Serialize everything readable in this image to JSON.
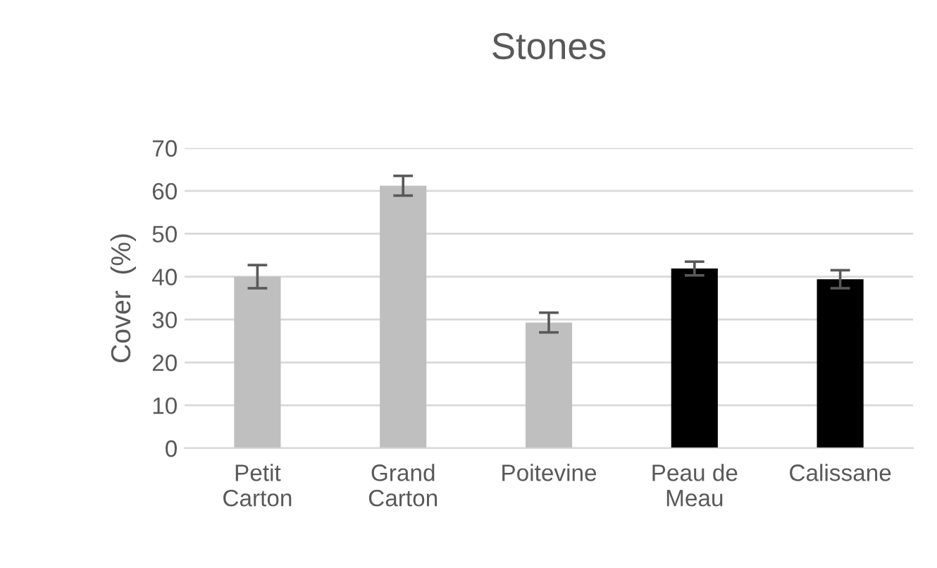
{
  "chart_data": {
    "type": "bar",
    "title": "Stones",
    "ylabel": "Cover  (%)",
    "categories": [
      "Petit\nCarton",
      "Grand\nCarton",
      "Poitevine",
      "Peau de\nMeau",
      "Calissane"
    ],
    "values": [
      40.0,
      61.2,
      29.3,
      41.9,
      39.4
    ],
    "errors": [
      2.7,
      2.3,
      2.3,
      1.6,
      2.1
    ],
    "colors": [
      "#bfbfbf",
      "#bfbfbf",
      "#bfbfbf",
      "#000000",
      "#000000"
    ],
    "ylim": [
      0,
      70
    ],
    "yticks": [
      0,
      10,
      20,
      30,
      40,
      50,
      60,
      70
    ],
    "grid": "y"
  }
}
